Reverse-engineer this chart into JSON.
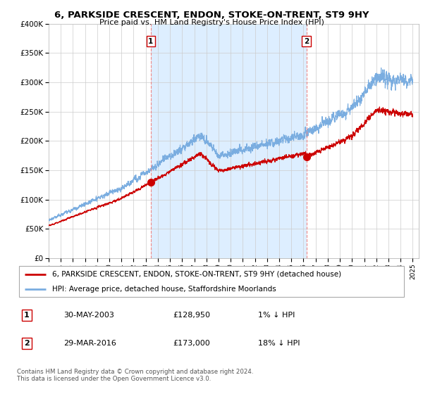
{
  "title": "6, PARKSIDE CRESCENT, ENDON, STOKE-ON-TRENT, ST9 9HY",
  "subtitle": "Price paid vs. HM Land Registry's House Price Index (HPI)",
  "ylim": [
    0,
    400000
  ],
  "yticks": [
    0,
    50000,
    100000,
    150000,
    200000,
    250000,
    300000,
    350000,
    400000
  ],
  "ytick_labels": [
    "£0",
    "£50K",
    "£100K",
    "£150K",
    "£200K",
    "£250K",
    "£300K",
    "£350K",
    "£400K"
  ],
  "hpi_color": "#7aade0",
  "price_color": "#cc0000",
  "vline_color": "#ee8888",
  "shade_color": "#ddeeff",
  "sale1_t": 2003.41,
  "sale1_p": 128950,
  "sale2_t": 2016.24,
  "sale2_p": 173000,
  "legend_line1": "6, PARKSIDE CRESCENT, ENDON, STOKE-ON-TRENT, ST9 9HY (detached house)",
  "legend_line2": "HPI: Average price, detached house, Staffordshire Moorlands",
  "table_row1": [
    "1",
    "30-MAY-2003",
    "£128,950",
    "1% ↓ HPI"
  ],
  "table_row2": [
    "2",
    "29-MAR-2016",
    "£173,000",
    "18% ↓ HPI"
  ],
  "footer": "Contains HM Land Registry data © Crown copyright and database right 2024.\nThis data is licensed under the Open Government Licence v3.0.",
  "background_color": "#ffffff",
  "grid_color": "#cccccc"
}
